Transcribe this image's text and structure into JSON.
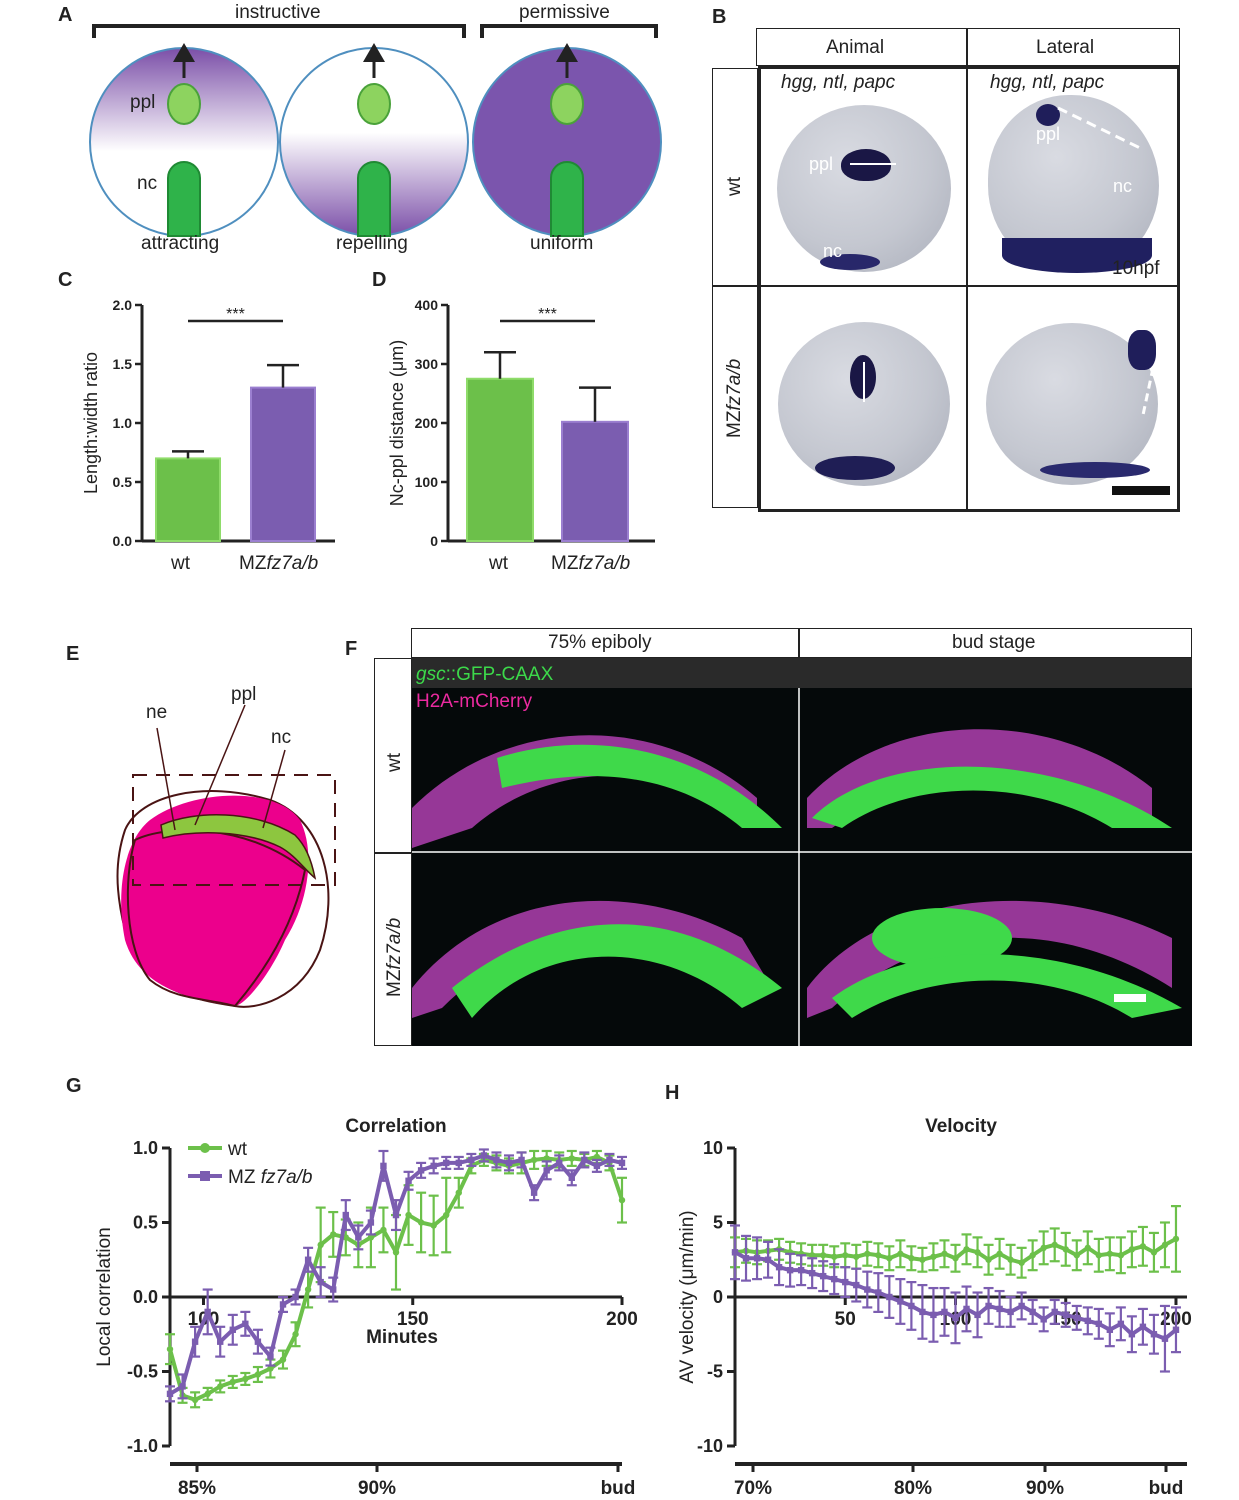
{
  "panels": {
    "A": {
      "letter": "A",
      "header_instructive": "instructive",
      "header_permissive": "permissive",
      "ppl": "ppl",
      "nc": "nc",
      "captions": [
        "attracting",
        "repelling",
        "uniform"
      ]
    },
    "B": {
      "letter": "B",
      "col_animal": "Animal",
      "col_lateral": "Lateral",
      "row_wt": "wt",
      "row_mz_prefix": "MZ",
      "row_mz_italic": "fz7a/b",
      "probes": "hgg, ntl, papc",
      "ppl": "ppl",
      "nc": "nc",
      "stage": "10hpf"
    },
    "C": {
      "letter": "C",
      "ylabel": "Length:width ratio",
      "yticks": [
        "2.0",
        "1.5",
        "1.0",
        "0.5",
        "0.0"
      ],
      "significance": "***",
      "x_wt": "wt",
      "x_mz_prefix": "MZ",
      "x_mz_italic": "fz7a/b"
    },
    "D": {
      "letter": "D",
      "ylabel": "Nc-ppl distance (μm)",
      "yticks": [
        "400",
        "300",
        "200",
        "100",
        "0"
      ],
      "significance": "***",
      "x_wt": "wt",
      "x_mz_prefix": "MZ",
      "x_mz_italic": "fz7a/b"
    },
    "E": {
      "letter": "E",
      "ne": "ne",
      "ppl": "ppl",
      "nc": "nc"
    },
    "F": {
      "letter": "F",
      "col_1": "75% epiboly",
      "col_2": "bud stage",
      "row_wt": "wt",
      "row_mz_prefix": "MZ",
      "row_mz_italic": "fz7a/b",
      "legend_gsc_italic": "gsc",
      "legend_gsc_rest": "::GFP-CAAX",
      "legend_h2a": "H2A-mCherry"
    },
    "G": {
      "letter": "G",
      "title": "Correlation",
      "ylabel": "Local correlation",
      "xlabel": "Minutes",
      "yticks": [
        "1.0",
        "0.5",
        "0.0",
        "-0.5",
        "-1.0"
      ],
      "xticks": [
        "100",
        "150",
        "200"
      ],
      "stage_ticks": [
        "85%",
        "90%",
        "bud"
      ],
      "legend_wt": "wt",
      "legend_mz_prefix": "MZ ",
      "legend_mz_italic": "fz7a/b"
    },
    "H": {
      "letter": "H",
      "title": "Velocity",
      "ylabel": "AV velocity (μm/min)",
      "yticks": [
        "10",
        "5",
        "0",
        "-5",
        "-10"
      ],
      "xticks": [
        "50",
        "100",
        "150",
        "200"
      ],
      "stage_ticks": [
        "70%",
        "80%",
        "90%",
        "bud"
      ]
    }
  },
  "colors": {
    "wt_green": "#6cc04a",
    "mz_purple": "#7b5db0",
    "pink": "#ec008c",
    "light_green": "#8dc63f"
  },
  "chart_data": [
    {
      "type": "bar",
      "panel": "C",
      "title": "",
      "categories": [
        "wt",
        "MZfz7a/b"
      ],
      "values": [
        0.7,
        1.3
      ],
      "errors": [
        0.06,
        0.19
      ],
      "xlabel": "",
      "ylabel": "Length:width ratio",
      "ylim": [
        0,
        2.0
      ],
      "colors": [
        "#6cc04a",
        "#7b5db0"
      ],
      "significance": "***"
    },
    {
      "type": "bar",
      "panel": "D",
      "title": "",
      "categories": [
        "wt",
        "MZfz7a/b"
      ],
      "values": [
        275,
        202
      ],
      "errors": [
        45,
        58
      ],
      "xlabel": "",
      "ylabel": "Nc-ppl distance (μm)",
      "ylim": [
        0,
        400
      ],
      "colors": [
        "#6cc04a",
        "#7b5db0"
      ],
      "significance": "***"
    },
    {
      "type": "line",
      "panel": "G",
      "title": "Correlation",
      "xlabel": "Minutes",
      "ylabel": "Local correlation",
      "xlim": [
        92,
        200
      ],
      "ylim": [
        -1.0,
        1.0
      ],
      "series": [
        {
          "name": "wt",
          "color": "#6cc04a",
          "x": [
            92,
            95,
            98,
            101,
            104,
            107,
            110,
            113,
            116,
            119,
            122,
            125,
            128,
            131,
            134,
            137,
            140,
            143,
            146,
            149,
            152,
            155,
            158,
            161,
            164,
            167,
            170,
            173,
            176,
            179,
            182,
            185,
            188,
            191,
            194,
            197,
            200
          ],
          "y": [
            -0.35,
            -0.66,
            -0.69,
            -0.65,
            -0.6,
            -0.57,
            -0.55,
            -0.52,
            -0.48,
            -0.42,
            -0.25,
            0.05,
            0.35,
            0.42,
            0.4,
            0.35,
            0.4,
            0.45,
            0.3,
            0.55,
            0.5,
            0.48,
            0.55,
            0.7,
            0.88,
            0.92,
            0.9,
            0.88,
            0.9,
            0.92,
            0.93,
            0.92,
            0.93,
            0.92,
            0.94,
            0.9,
            0.65
          ],
          "err": [
            0.1,
            0.05,
            0.05,
            0.04,
            0.04,
            0.04,
            0.04,
            0.05,
            0.06,
            0.06,
            0.08,
            0.12,
            0.25,
            0.15,
            0.12,
            0.15,
            0.2,
            0.15,
            0.25,
            0.2,
            0.2,
            0.2,
            0.25,
            0.1,
            0.05,
            0.04,
            0.05,
            0.05,
            0.07,
            0.06,
            0.05,
            0.05,
            0.05,
            0.04,
            0.04,
            0.05,
            0.15
          ]
        },
        {
          "name": "MZ fz7a/b",
          "color": "#7b5db0",
          "x": [
            92,
            95,
            98,
            101,
            104,
            107,
            110,
            113,
            116,
            119,
            122,
            125,
            128,
            131,
            134,
            137,
            140,
            143,
            146,
            149,
            152,
            155,
            158,
            161,
            164,
            167,
            170,
            173,
            176,
            179,
            182,
            185,
            188,
            191,
            194,
            197,
            200
          ],
          "y": [
            -0.65,
            -0.6,
            -0.3,
            -0.1,
            -0.3,
            -0.22,
            -0.18,
            -0.3,
            -0.4,
            -0.05,
            0.0,
            0.25,
            0.1,
            0.05,
            0.55,
            0.4,
            0.5,
            0.88,
            0.55,
            0.78,
            0.85,
            0.88,
            0.9,
            0.9,
            0.92,
            0.95,
            0.92,
            0.9,
            0.92,
            0.7,
            0.85,
            0.9,
            0.8,
            0.92,
            0.88,
            0.92,
            0.9
          ],
          "err": [
            0.05,
            0.08,
            0.1,
            0.15,
            0.1,
            0.1,
            0.08,
            0.08,
            0.06,
            0.05,
            0.05,
            0.08,
            0.1,
            0.08,
            0.1,
            0.08,
            0.08,
            0.1,
            0.1,
            0.06,
            0.05,
            0.05,
            0.04,
            0.04,
            0.04,
            0.04,
            0.05,
            0.05,
            0.05,
            0.05,
            0.06,
            0.05,
            0.05,
            0.05,
            0.04,
            0.04,
            0.04
          ]
        }
      ],
      "stage_axis": [
        "85%",
        "90%",
        "bud"
      ]
    },
    {
      "type": "line",
      "panel": "H",
      "title": "Velocity",
      "xlabel": "",
      "ylabel": "AV velocity (μm/min)",
      "xlim": [
        0,
        205
      ],
      "ylim": [
        -10,
        10
      ],
      "series": [
        {
          "name": "wt",
          "color": "#6cc04a",
          "x": [
            0,
            5,
            10,
            15,
            20,
            25,
            30,
            35,
            40,
            45,
            50,
            55,
            60,
            65,
            70,
            75,
            80,
            85,
            90,
            95,
            100,
            105,
            110,
            115,
            120,
            125,
            130,
            135,
            140,
            145,
            150,
            155,
            160,
            165,
            170,
            175,
            180,
            185,
            190,
            195,
            200
          ],
          "y": [
            3.0,
            3.1,
            3.0,
            3.1,
            3.2,
            3.0,
            2.9,
            2.8,
            2.8,
            2.7,
            2.8,
            2.7,
            2.9,
            2.8,
            2.6,
            2.9,
            2.6,
            2.5,
            2.7,
            2.9,
            2.6,
            3.2,
            3.0,
            2.5,
            2.9,
            2.5,
            2.3,
            2.8,
            3.3,
            3.5,
            3.2,
            2.8,
            3.3,
            2.8,
            2.9,
            2.8,
            3.2,
            3.4,
            3.0,
            3.5,
            3.9
          ],
          "err": [
            1.0,
            0.8,
            0.8,
            0.7,
            0.7,
            0.7,
            0.7,
            0.7,
            0.7,
            0.7,
            0.8,
            0.8,
            0.8,
            0.8,
            0.8,
            0.9,
            0.8,
            0.8,
            0.9,
            0.9,
            0.9,
            1.0,
            1.0,
            1.0,
            1.0,
            1.0,
            1.0,
            1.0,
            1.1,
            1.1,
            1.1,
            1.0,
            1.1,
            1.1,
            1.1,
            1.2,
            1.2,
            1.3,
            1.3,
            1.5,
            2.2
          ]
        },
        {
          "name": "MZ fz7a/b",
          "color": "#7b5db0",
          "x": [
            0,
            5,
            10,
            15,
            20,
            25,
            30,
            35,
            40,
            45,
            50,
            55,
            60,
            65,
            70,
            75,
            80,
            85,
            90,
            95,
            100,
            105,
            110,
            115,
            120,
            125,
            130,
            135,
            140,
            145,
            150,
            155,
            160,
            165,
            170,
            175,
            180,
            185,
            190,
            195,
            200
          ],
          "y": [
            3.0,
            2.6,
            2.6,
            2.5,
            2.0,
            1.8,
            1.8,
            1.6,
            1.4,
            1.2,
            1.0,
            0.8,
            0.5,
            0.3,
            0.0,
            -0.3,
            -0.6,
            -1.0,
            -1.2,
            -1.0,
            -1.4,
            -0.8,
            -1.2,
            -0.6,
            -0.8,
            -1.0,
            -0.6,
            -1.0,
            -1.5,
            -1.0,
            -1.2,
            -1.4,
            -1.6,
            -1.8,
            -2.2,
            -1.8,
            -2.5,
            -2.0,
            -2.5,
            -2.8,
            -2.2
          ],
          "err": [
            1.8,
            1.5,
            1.4,
            1.2,
            1.2,
            1.1,
            1.0,
            1.0,
            1.0,
            1.0,
            1.0,
            1.1,
            1.2,
            1.3,
            1.4,
            1.5,
            1.6,
            1.8,
            1.8,
            1.6,
            1.7,
            1.5,
            1.5,
            1.2,
            1.2,
            1.0,
            0.9,
            0.8,
            0.8,
            0.8,
            0.8,
            0.8,
            0.9,
            1.0,
            1.1,
            1.1,
            1.2,
            1.2,
            1.3,
            2.2,
            1.5
          ]
        }
      ],
      "stage_axis": [
        "70%",
        "80%",
        "90%",
        "bud"
      ]
    }
  ]
}
